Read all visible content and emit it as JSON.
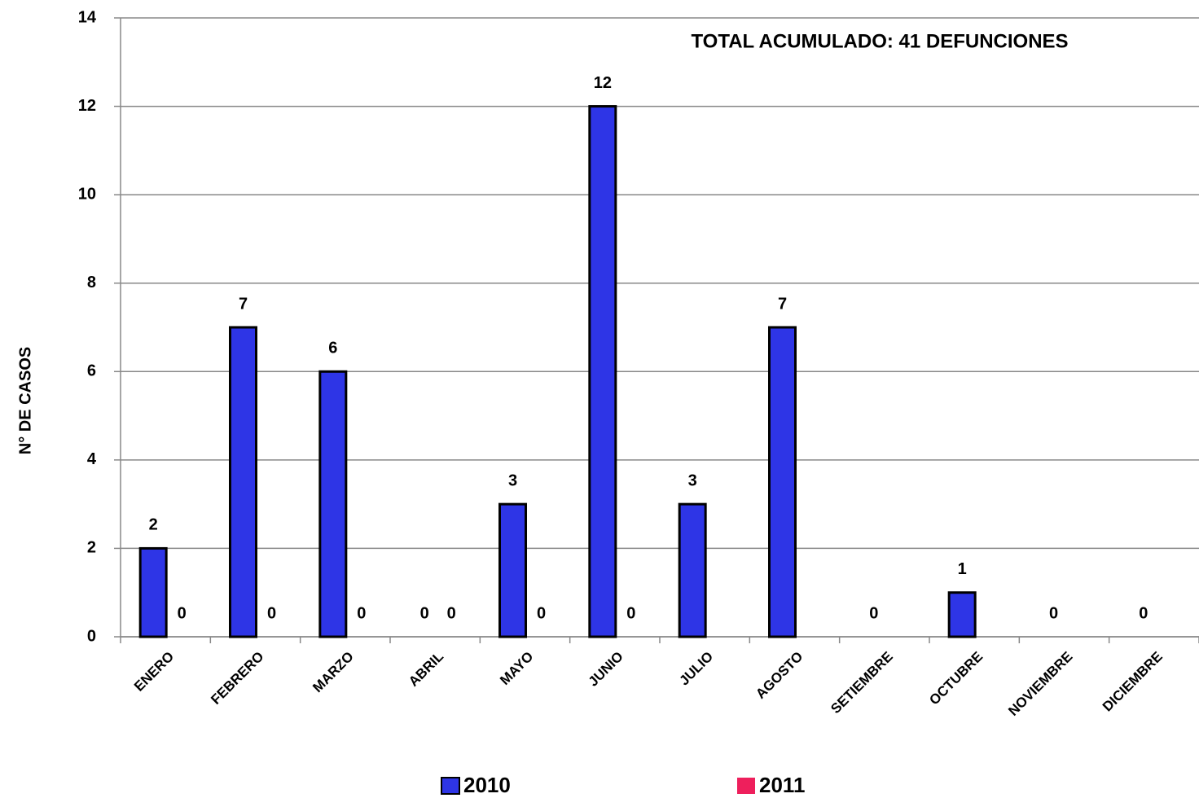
{
  "chart_data": {
    "type": "bar",
    "annotation": "TOTAL  ACUMULADO: 41 DEFUNCIONES",
    "y_label": "N° DE CASOS",
    "categories": [
      "ENERO",
      "FEBRERO",
      "MARZO",
      "ABRIL",
      "MAYO",
      "JUNIO",
      "JULIO",
      "AGOSTO",
      "SETIEMBRE",
      "OCTUBRE",
      "NOVIEMBRE",
      "DICIEMBRE"
    ],
    "series": [
      {
        "name": "2010",
        "color": "#2e35e6",
        "values": [
          2,
          7,
          6,
          0,
          3,
          12,
          3,
          7,
          0,
          1,
          0,
          0
        ]
      },
      {
        "name": "2011",
        "color": "#ee1f5c",
        "values": [
          0,
          0,
          0,
          0,
          0,
          0,
          null,
          null,
          null,
          null,
          null,
          null
        ]
      }
    ],
    "ylim": [
      0,
      14
    ],
    "yticks": [
      0,
      2,
      4,
      6,
      8,
      10,
      12,
      14
    ],
    "grid": true
  }
}
